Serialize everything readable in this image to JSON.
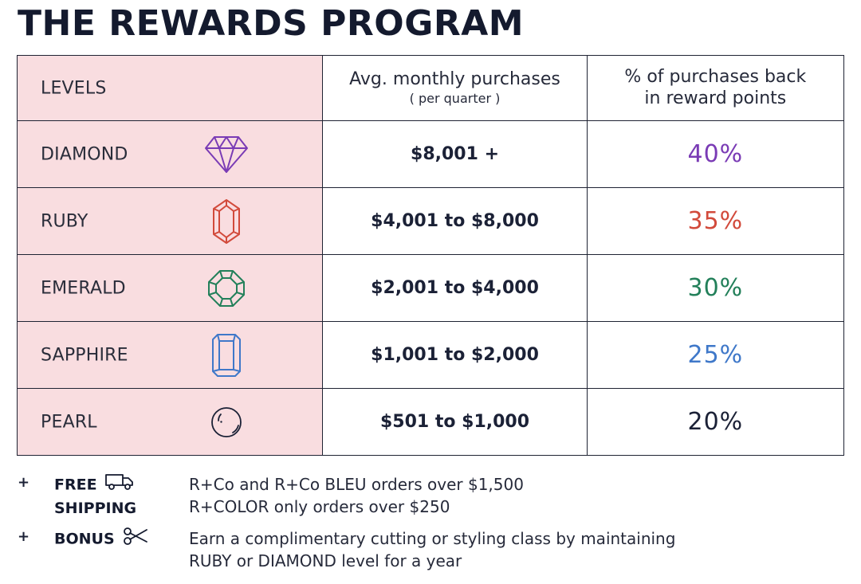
{
  "title": "THE REWARDS PROGRAM",
  "table": {
    "headers": {
      "levels": "LEVELS",
      "purchases": "Avg. monthly purchases",
      "purchases_sub": "( per quarter )",
      "back_line1": "% of purchases back",
      "back_line2": "in reward points"
    },
    "rows": [
      {
        "level": "DIAMOND",
        "icon": "diamond-icon",
        "range": "$8,001 +",
        "percent": "40%",
        "color": "#7a3bb5"
      },
      {
        "level": "RUBY",
        "icon": "ruby-icon",
        "range": "$4,001 to $8,000",
        "percent": "35%",
        "color": "#d24a3b"
      },
      {
        "level": "EMERALD",
        "icon": "emerald-icon",
        "range": "$2,001 to $4,000",
        "percent": "30%",
        "color": "#23805a"
      },
      {
        "level": "SAPPHIRE",
        "icon": "sapphire-icon",
        "range": "$1,001 to $2,000",
        "percent": "25%",
        "color": "#3f78c9"
      },
      {
        "level": "PEARL",
        "icon": "pearl-icon",
        "range": "$501 to $1,000",
        "percent": "20%",
        "color": "#1b2136"
      }
    ]
  },
  "notes": [
    {
      "bullet": "+",
      "label_line1": "FREE",
      "label_line2": "SHIPPING",
      "icon": "truck-icon",
      "desc_line1": "R+Co and R+Co BLEU orders over $1,500",
      "desc_line2": "R+COLOR only orders over $250"
    },
    {
      "bullet": "+",
      "label_line1": "BONUS",
      "label_line2": "",
      "icon": "scissors-icon",
      "desc_line1": "Earn a complimentary cutting or styling class by maintaining",
      "desc_line2": "RUBY or DIAMOND level for a year"
    }
  ]
}
